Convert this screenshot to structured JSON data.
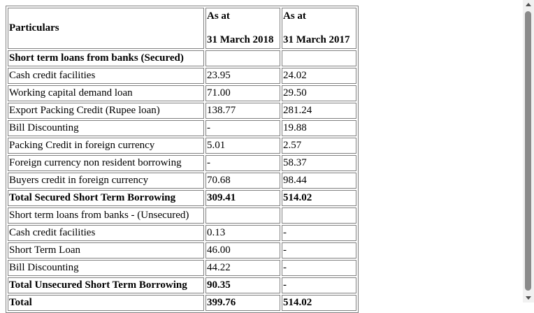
{
  "table": {
    "header": {
      "particulars": "Particulars",
      "col1_line1": "As at",
      "col1_line2": "31 March 2018",
      "col2_line1": "As at",
      "col2_line2": "31 March 2017"
    },
    "rows": [
      {
        "label": "Short term loans from banks (Secured)",
        "v2018": "",
        "v2017": "",
        "bold": true
      },
      {
        "label": "Cash credit facilities",
        "v2018": "23.95",
        "v2017": "24.02",
        "bold": false
      },
      {
        "label": "Working capital demand loan",
        "v2018": "71.00",
        "v2017": "29.50",
        "bold": false
      },
      {
        "label": "Export Packing Credit (Rupee loan)",
        "v2018": "138.77",
        "v2017": "281.24",
        "bold": false
      },
      {
        "label": "Bill Discounting",
        "v2018": "-",
        "v2017": "19.88",
        "bold": false
      },
      {
        "label": "Packing Credit in foreign currency",
        "v2018": "5.01",
        "v2017": "2.57",
        "bold": false
      },
      {
        "label": "Foreign currency non resident borrowing",
        "v2018": "-",
        "v2017": "58.37",
        "bold": false
      },
      {
        "label": "Buyers credit in foreign currency",
        "v2018": "70.68",
        "v2017": "98.44",
        "bold": false
      },
      {
        "label": "Total Secured Short Term Borrowing",
        "v2018": "309.41",
        "v2017": "514.02",
        "bold": true
      },
      {
        "label": "Short term loans from banks - (Unsecured)",
        "v2018": "",
        "v2017": "",
        "bold": false
      },
      {
        "label": "Cash credit facilities",
        "v2018": "0.13",
        "v2017": "-",
        "bold": false
      },
      {
        "label": "Short Term Loan",
        "v2018": "46.00",
        "v2017": "-",
        "bold": false
      },
      {
        "label": "Bill Discounting",
        "v2018": "44.22",
        "v2017": "-",
        "bold": false
      },
      {
        "label": "Total Unsecured Short Term Borrowing",
        "v2018": "90.35",
        "v2017": "-",
        "bold": true
      },
      {
        "label": "Total",
        "v2018": "399.76",
        "v2017": "514.02",
        "bold": true
      }
    ]
  }
}
